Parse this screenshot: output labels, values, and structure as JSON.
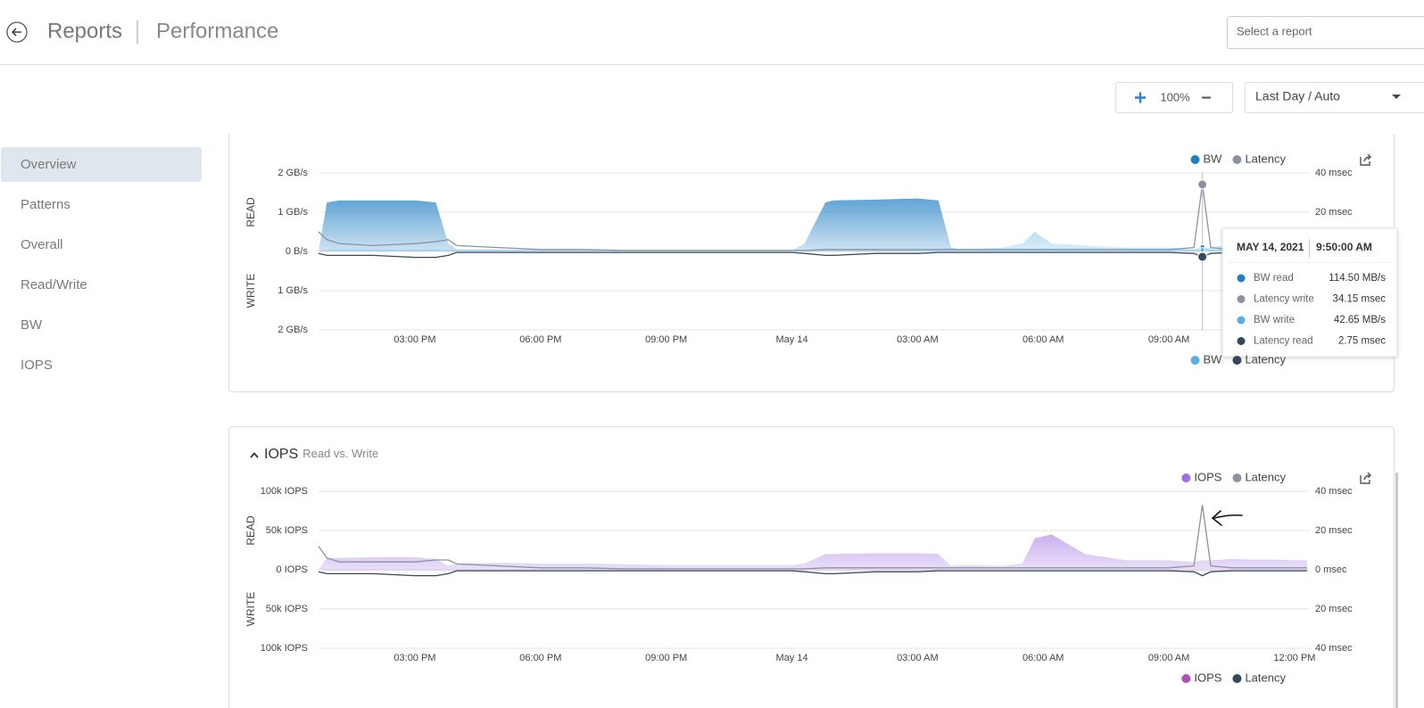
{
  "header": {
    "title": "Reports",
    "subtitle": "Performance",
    "select_placeholder": "Select a report"
  },
  "toolbar": {
    "zoom": "100%",
    "range": "Last Day / Auto"
  },
  "nav": [
    "Overview",
    "Patterns",
    "Overall",
    "Read/Write",
    "BW",
    "IOPS"
  ],
  "chart_data": [
    {
      "type": "area",
      "ylabels": [
        "READ",
        "WRITE"
      ],
      "grid": true,
      "xlim": [
        0.7,
        24.3
      ],
      "xticks": [
        {
          "value": 3,
          "label": "03:00 PM"
        },
        {
          "value": 6,
          "label": "06:00 PM"
        },
        {
          "value": 9,
          "label": "09:00 PM"
        },
        {
          "value": 12,
          "label": "May 14"
        },
        {
          "value": 15,
          "label": "03:00 AM"
        },
        {
          "value": 18,
          "label": "06:00 AM"
        },
        {
          "value": 21,
          "label": "09:00 AM"
        }
      ],
      "ylim": [
        -2,
        2
      ],
      "yticks": [
        {
          "value": 2,
          "label": "2 GB/s"
        },
        {
          "value": 1,
          "label": "1 GB/s"
        },
        {
          "value": 0,
          "label": "0 B/s"
        },
        {
          "value": -1,
          "label": "1 GB/s"
        },
        {
          "value": -2,
          "label": "2 GB/s"
        }
      ],
      "y2lim": [
        -40,
        40
      ],
      "y2ticks": [
        {
          "value": 40,
          "label": "40 msec"
        },
        {
          "value": 20,
          "label": "20 msec"
        },
        {
          "value": 0,
          "label": "0 msec"
        },
        {
          "value": -20,
          "label": "20 msec"
        },
        {
          "value": -40,
          "label": "40 msec"
        }
      ],
      "x": [
        0.7,
        0.9,
        1.2,
        2,
        3,
        3.5,
        3.8,
        4,
        5,
        6,
        7,
        8,
        9,
        10,
        11,
        12,
        12.3,
        12.8,
        13,
        14,
        15,
        15.5,
        15.8,
        16,
        17,
        17.5,
        17.8,
        18.2,
        19,
        20,
        21,
        21.6,
        21.8,
        22,
        22.5,
        23,
        23.5,
        24,
        24.3
      ],
      "series": [
        {
          "name": "BW",
          "color": "#1f7fc4",
          "type": "area",
          "values": [
            0,
            1.25,
            1.3,
            1.3,
            1.3,
            1.25,
            0.2,
            0.05,
            0.05,
            0.03,
            0.03,
            0.03,
            0.02,
            0.02,
            0.02,
            0.02,
            0.2,
            1.25,
            1.3,
            1.32,
            1.35,
            1.3,
            0.1,
            0.05,
            0.05,
            0.05,
            0.05,
            0.05,
            0.03,
            0.03,
            0.05,
            0.05,
            0.1145,
            0.05,
            0.05,
            0.05,
            0.05,
            0.05,
            0.05
          ]
        },
        {
          "name": "Latency",
          "color": "#8c93a0",
          "type": "line",
          "axis": "y2",
          "values": [
            10,
            6,
            4,
            3,
            4,
            5,
            6,
            3,
            2,
            1,
            1,
            0.5,
            0.5,
            0.5,
            0.5,
            0.5,
            0.5,
            1,
            1,
            1,
            1,
            1,
            1,
            1,
            1,
            1,
            1,
            1,
            1,
            1,
            1,
            2,
            34.15,
            2,
            1,
            1,
            1,
            1,
            1
          ]
        },
        {
          "name": "BW",
          "color": "#5aaee6",
          "type": "area",
          "values": [
            0,
            0.05,
            0.05,
            0.05,
            0.05,
            0.05,
            0.05,
            0.05,
            0.04,
            0.05,
            0.03,
            0.02,
            0.02,
            0.02,
            0.02,
            0.02,
            0.03,
            0.05,
            0.05,
            0.05,
            0.05,
            0.05,
            0.1,
            0.05,
            0.1,
            0.2,
            0.5,
            0.2,
            0.15,
            0.1,
            0.1,
            0.05,
            0.04265,
            0.1,
            0.2,
            0.15,
            0.1,
            0.05,
            0.05
          ]
        },
        {
          "name": "Latency",
          "color": "#34495e",
          "type": "line",
          "axis": "y2",
          "values": [
            -1,
            -2,
            -2,
            -2,
            -3,
            -3,
            -2,
            -0.5,
            -0.5,
            -0.5,
            -0.5,
            -0.5,
            -0.5,
            -0.5,
            -0.5,
            -0.5,
            -1,
            -2,
            -2,
            -1,
            -1,
            -0.5,
            -0.5,
            -0.5,
            -0.5,
            -0.5,
            -0.5,
            -0.5,
            -0.5,
            -0.5,
            -0.5,
            -1,
            -2.75,
            -1,
            -0.5,
            -0.5,
            -0.5,
            -0.5,
            -0.5
          ]
        }
      ],
      "tooltip": {
        "date": "MAY 14, 2021",
        "time": "9:50:00 AM",
        "rows": [
          {
            "name": "BW read",
            "value": "114.50 MB/s",
            "color": "#1f7fc4"
          },
          {
            "name": "Latency write",
            "value": "34.15 msec",
            "color": "#8c93a0"
          },
          {
            "name": "BW write",
            "value": "42.65 MB/s",
            "color": "#5aaee6"
          },
          {
            "name": "Latency read",
            "value": "2.75 msec",
            "color": "#34495e"
          }
        ]
      }
    },
    {
      "type": "area",
      "title": "IOPS",
      "subtitle": "Read vs. Write",
      "ylabels": [
        "READ",
        "WRITE"
      ],
      "grid": true,
      "xlim": [
        0.7,
        24.3
      ],
      "xticks": [
        {
          "value": 3,
          "label": "03:00 PM"
        },
        {
          "value": 6,
          "label": "06:00 PM"
        },
        {
          "value": 9,
          "label": "09:00 PM"
        },
        {
          "value": 12,
          "label": "May 14"
        },
        {
          "value": 15,
          "label": "03:00 AM"
        },
        {
          "value": 18,
          "label": "06:00 AM"
        },
        {
          "value": 21,
          "label": "09:00 AM"
        },
        {
          "value": 24,
          "label": "12:00 PM"
        }
      ],
      "ylim": [
        -100000,
        100000
      ],
      "yticks": [
        {
          "value": 100000,
          "label": "100k IOPS"
        },
        {
          "value": 50000,
          "label": "50k IOPS"
        },
        {
          "value": 0,
          "label": "0 IOPS"
        },
        {
          "value": -50000,
          "label": "50k IOPS"
        },
        {
          "value": -100000,
          "label": "100k IOPS"
        }
      ],
      "y2lim": [
        -40,
        40
      ],
      "y2ticks": [
        {
          "value": 40,
          "label": "40 msec"
        },
        {
          "value": 20,
          "label": "20 msec"
        },
        {
          "value": 0,
          "label": "0 msec"
        },
        {
          "value": -20,
          "label": "20 msec"
        },
        {
          "value": -40,
          "label": "40 msec"
        }
      ],
      "x": [
        0.7,
        0.9,
        1.2,
        2,
        3,
        3.5,
        3.8,
        4,
        5,
        6,
        7,
        8,
        9,
        10,
        11,
        12,
        12.3,
        12.8,
        13,
        14,
        15,
        15.5,
        15.8,
        16,
        17,
        17.5,
        17.8,
        18.2,
        19,
        20,
        21,
        21.6,
        21.8,
        22,
        22.5,
        23,
        23.5,
        24,
        24.3
      ],
      "series": [
        {
          "name": "IOPS",
          "color": "#9d6fe3",
          "type": "area",
          "values": [
            0,
            15000,
            15000,
            16000,
            16000,
            14000,
            5000,
            8000,
            9000,
            8000,
            8000,
            7000,
            6000,
            6000,
            6000,
            6000,
            8000,
            20000,
            20000,
            21000,
            21000,
            20000,
            5000,
            6000,
            5000,
            8000,
            40000,
            45000,
            20000,
            12000,
            12000,
            10000,
            12000,
            12000,
            14000,
            13000,
            13000,
            12000,
            12000
          ]
        },
        {
          "name": "Latency",
          "color": "#8c93a0",
          "type": "line",
          "axis": "y2",
          "values": [
            12,
            6,
            4,
            4,
            4,
            5,
            5,
            3,
            2,
            1,
            1,
            0.5,
            0.5,
            0.5,
            0.5,
            0.5,
            0.5,
            1,
            1,
            1,
            1,
            1,
            1,
            1,
            1,
            1,
            1,
            1,
            1,
            1,
            1,
            2,
            33,
            2,
            1,
            1,
            1,
            1,
            1
          ]
        },
        {
          "name": "IOPS",
          "color": "#b04fb8",
          "type": "area",
          "values": [
            0,
            -1000,
            -1000,
            -1000,
            -1000,
            -1000,
            -1000,
            -1000,
            -1000,
            -1000,
            -1000,
            -1000,
            -1000,
            -1000,
            -1000,
            -1000,
            -1000,
            -1000,
            -1000,
            -1000,
            -1000,
            -1000,
            -1000,
            -1000,
            -1000,
            -1000,
            -1000,
            -1000,
            -1000,
            -1000,
            -1000,
            -1000,
            -1000,
            -1000,
            -1000,
            -1000,
            -1000,
            -1000,
            -1000
          ]
        },
        {
          "name": "Latency",
          "color": "#34495e",
          "type": "line",
          "axis": "y2",
          "values": [
            -1,
            -2,
            -2,
            -2,
            -3,
            -3,
            -2,
            -0.5,
            -0.5,
            -0.5,
            -0.5,
            -0.5,
            -0.5,
            -0.5,
            -0.5,
            -0.5,
            -1,
            -2,
            -2,
            -1,
            -1,
            -0.5,
            -0.5,
            -0.5,
            -0.5,
            -0.5,
            -0.5,
            -0.5,
            -0.5,
            -0.5,
            -0.5,
            -1,
            -3,
            -1,
            -0.5,
            -0.5,
            -0.5,
            -0.5,
            -0.5
          ]
        }
      ]
    }
  ]
}
